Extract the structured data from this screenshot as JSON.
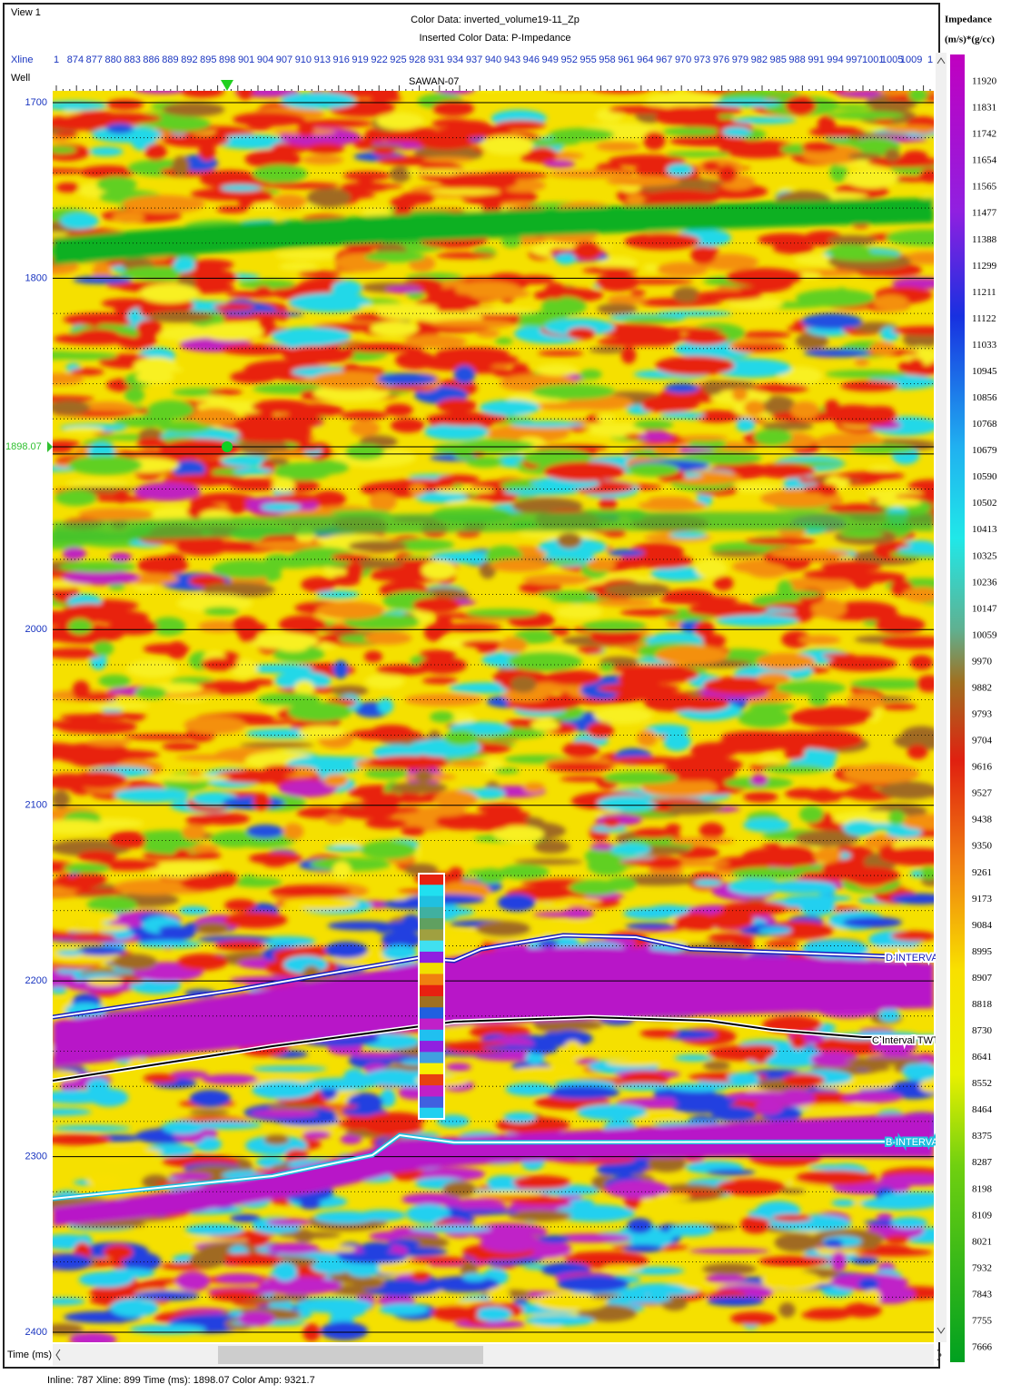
{
  "window": {
    "title": "View 1",
    "header_lines": [
      "Color Data: inverted_volume19-11_Zp",
      "Inserted Color Data: P-Impedance"
    ]
  },
  "axis": {
    "xline_label": "Xline",
    "well_label": "Well",
    "xlines": [
      "1",
      "874",
      "877",
      "880",
      "883",
      "886",
      "889",
      "892",
      "895",
      "898",
      "901",
      "904",
      "907",
      "910",
      "913",
      "916",
      "919",
      "922",
      "925",
      "928",
      "931",
      "934",
      "937",
      "940",
      "943",
      "946",
      "949",
      "952",
      "955",
      "958",
      "961",
      "964",
      "967",
      "970",
      "973",
      "976",
      "979",
      "982",
      "985",
      "988",
      "991",
      "994",
      "997",
      "1001",
      "1005",
      "1009",
      "1"
    ],
    "well_name": "SAWAN-07",
    "time_label": "Time (ms)",
    "times": [
      1700,
      1800,
      2000,
      2100,
      2200,
      2300,
      2400
    ],
    "cursor_time": "1898.07"
  },
  "horizons": [
    "D INTERVAL",
    "C Interval TWT",
    "B-INTERVAL"
  ],
  "colorbar": {
    "title": "Impedance",
    "unit": "(m/s)*(g/cc)",
    "ticks": [
      11920,
      11831,
      11742,
      11654,
      11565,
      11477,
      11388,
      11299,
      11211,
      11122,
      11033,
      10945,
      10856,
      10768,
      10679,
      10590,
      10502,
      10413,
      10325,
      10236,
      10147,
      10059,
      9970,
      9882,
      9793,
      9704,
      9616,
      9527,
      9438,
      9350,
      9261,
      9173,
      9084,
      8995,
      8907,
      8818,
      8730,
      8641,
      8552,
      8464,
      8375,
      8287,
      8198,
      8109,
      8021,
      7932,
      7843,
      7755,
      7666
    ]
  },
  "status": "Inline: 787 Xline: 899 Time (ms): 1898.07 Color Amp: 9321.7"
}
